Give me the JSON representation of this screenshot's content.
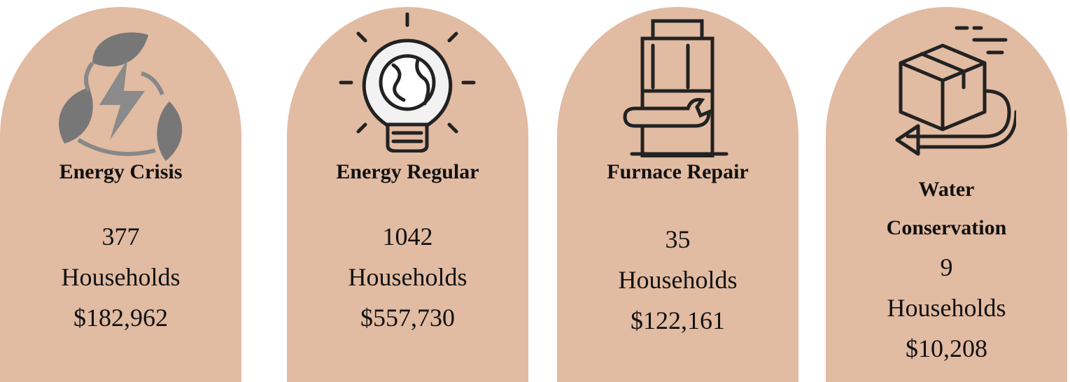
{
  "cards": [
    {
      "title": "Energy Crisis",
      "count": 377,
      "unit": "Households",
      "amount": "$182,962"
    },
    {
      "title": "Energy Regular",
      "count": 1042,
      "unit": "Households",
      "amount": "$557,730"
    },
    {
      "title": "Furnace Repair",
      "count": 35,
      "unit": "Households",
      "amount": "$122,161"
    },
    {
      "title": "Water Conservation",
      "count": 9,
      "unit": "Households",
      "amount": "$10,208"
    }
  ]
}
